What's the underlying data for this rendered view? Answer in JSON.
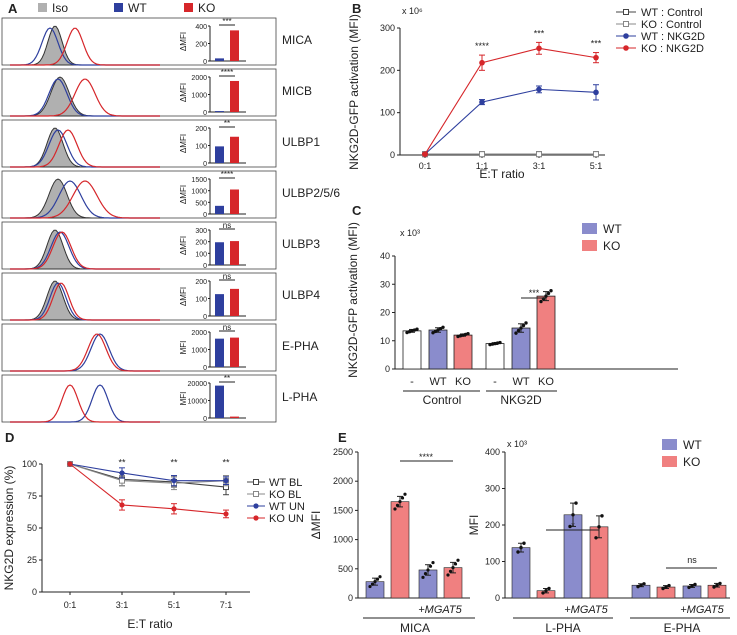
{
  "figure": {
    "colors": {
      "wt": "#2e3f9e",
      "ko": "#d6262a",
      "wt_bar": "#8a8ccc",
      "ko_bar": "#f08080",
      "iso": "#b0b0b0"
    }
  },
  "chart_data": [
    {
      "panel": "A",
      "type": "histogram-with-bars",
      "legend": [
        "Iso",
        "WT",
        "KO"
      ],
      "rows": [
        {
          "label": "MICA",
          "ylabel": "ΔMFI",
          "ticks": [
            "400",
            "200",
            "0"
          ],
          "wt": 30,
          "ko": 350,
          "ymax": 400,
          "sig": "***"
        },
        {
          "label": "MICB",
          "ylabel": "ΔMFI",
          "ticks": [
            "2000",
            "1000",
            "0"
          ],
          "wt": 60,
          "ko": 1950,
          "ymax": 2200,
          "sig": "****"
        },
        {
          "label": "ULBP1",
          "ylabel": "ΔMFI",
          "ticks": [
            "200",
            "100",
            "0"
          ],
          "wt": 95,
          "ko": 150,
          "ymax": 200,
          "sig": "**"
        },
        {
          "label": "ULBP2/5/6",
          "ylabel": "ΔMFI",
          "ticks": [
            "1500",
            "1000",
            "500",
            "0"
          ],
          "wt": 350,
          "ko": 1050,
          "ymax": 1500,
          "sig": "****"
        },
        {
          "label": "ULBP3",
          "ylabel": "ΔMFI",
          "ticks": [
            "300",
            "200",
            "100",
            "0"
          ],
          "wt": 195,
          "ko": 205,
          "ymax": 300,
          "sig": "ns"
        },
        {
          "label": "ULBP4",
          "ylabel": "ΔMFI",
          "ticks": [
            "200",
            "100",
            "0"
          ],
          "wt": 125,
          "ko": 155,
          "ymax": 200,
          "sig": "ns"
        },
        {
          "label": "E-PHA",
          "ylabel": "MFI",
          "ticks": [
            "2000",
            "1000",
            "0"
          ],
          "wt": 1620,
          "ko": 1680,
          "ymax": 2000,
          "sig": "ns"
        },
        {
          "label": "L-PHA",
          "ylabel": "MFI",
          "ticks": [
            "20000",
            "10000",
            "0"
          ],
          "wt": 18500,
          "ko": 800,
          "ymax": 20000,
          "sig": "**"
        }
      ]
    },
    {
      "panel": "B",
      "type": "line",
      "ylabel": "NKG2D-GFP activation (MFI)",
      "xlabel": "E:T ratio",
      "scale_note": "x 10⁶",
      "x": [
        "0:1",
        "1:1",
        "3:1",
        "5:1"
      ],
      "ylim": [
        0,
        300
      ],
      "yticks": [
        "0",
        "100",
        "200",
        "300"
      ],
      "series": [
        {
          "name": "WT : Control",
          "values": [
            2,
            2,
            2,
            2
          ],
          "err": [
            1,
            1,
            1,
            1
          ]
        },
        {
          "name": "KO : Control",
          "values": [
            2,
            2,
            2,
            2
          ],
          "err": [
            1,
            1,
            1,
            1
          ]
        },
        {
          "name": "WT : NKG2D",
          "values": [
            2,
            125,
            155,
            148
          ],
          "err": [
            2,
            6,
            8,
            18
          ]
        },
        {
          "name": "KO : NKG2D",
          "values": [
            2,
            218,
            252,
            230
          ],
          "err": [
            2,
            18,
            14,
            12
          ]
        }
      ],
      "sig": [
        "****",
        "***",
        "***"
      ]
    },
    {
      "panel": "C",
      "type": "bar",
      "ylabel": "NKG2D-GFP activation (MFI)",
      "scale_note": "x 10³",
      "legend": [
        "WT",
        "KO"
      ],
      "categories": [
        "-",
        "WT",
        "KO",
        "-",
        "WT",
        "KO"
      ],
      "groups": [
        "Control",
        "NKG2D"
      ],
      "ylim": [
        0,
        40
      ],
      "yticks": [
        "0",
        "10",
        "20",
        "30",
        "40"
      ],
      "values": [
        13.5,
        13.8,
        12,
        9,
        14.5,
        25.8
      ],
      "err": [
        0.5,
        0.8,
        0.4,
        0.3,
        1.5,
        1.6
      ],
      "sig": "***"
    },
    {
      "panel": "D",
      "type": "line",
      "ylabel": "NKG2D expression (%)",
      "xlabel": "E:T ratio",
      "x": [
        "0:1",
        "3:1",
        "5:1",
        "7:1"
      ],
      "ylim": [
        0,
        100
      ],
      "yticks": [
        "0",
        "25",
        "50",
        "75",
        "100"
      ],
      "series": [
        {
          "name": "WT BL",
          "values": [
            100,
            88,
            86,
            82
          ],
          "err": [
            0,
            5,
            4,
            6
          ]
        },
        {
          "name": "KO BL",
          "values": [
            100,
            87,
            85,
            87
          ],
          "err": [
            0,
            4,
            5,
            4
          ]
        },
        {
          "name": "WT UN",
          "values": [
            100,
            93,
            87,
            87
          ],
          "err": [
            0,
            4,
            4,
            3
          ]
        },
        {
          "name": "KO UN",
          "values": [
            100,
            68,
            65,
            61
          ],
          "err": [
            0,
            4,
            4,
            3
          ]
        }
      ],
      "sig": [
        "**",
        "**",
        "**"
      ]
    },
    {
      "panel": "E",
      "type": "bar",
      "legend": [
        "WT",
        "KO"
      ],
      "subcharts": [
        {
          "ylabel": "ΔMFI",
          "ylim": [
            0,
            2500
          ],
          "yticks": [
            "0",
            "500",
            "1000",
            "1500",
            "2000",
            "2500"
          ],
          "values": [
            280,
            1650,
            480,
            520
          ],
          "err": [
            60,
            90,
            90,
            90
          ],
          "xnote": "+MGAT5",
          "group": "MICA",
          "sig": "****"
        },
        {
          "ylabel": "MFI",
          "scale_note": "x 10³",
          "ylim": [
            0,
            400
          ],
          "yticks": [
            "0",
            "100",
            "200",
            "300",
            "400"
          ],
          "values": [
            138,
            20,
            228,
            195
          ],
          "err": [
            12,
            6,
            32,
            30
          ],
          "xnote": "+MGAT5",
          "group": "L-PHA",
          "sig": "*"
        },
        {
          "values": [
            35,
            30,
            33,
            35
          ],
          "err": [
            4,
            4,
            4,
            5
          ],
          "xnote": "+MGAT5",
          "group": "E-PHA",
          "sig": "ns"
        }
      ]
    }
  ]
}
